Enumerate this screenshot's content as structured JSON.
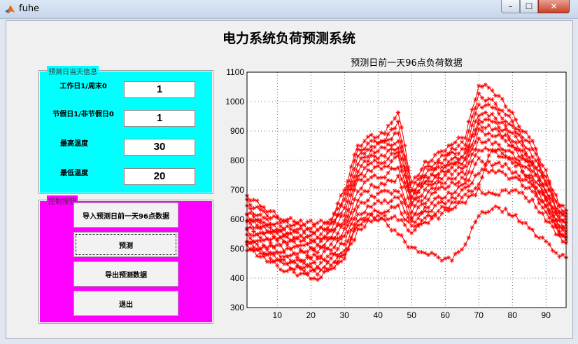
{
  "window": {
    "title": "fuhe",
    "min_label": "–",
    "max_label": "☐",
    "close_label": "✕"
  },
  "main_title": "电力系统负荷预测系统",
  "info_panel": {
    "title": "预测日当天信息",
    "fields": [
      {
        "label": "工作日1/周末0",
        "value": "1"
      },
      {
        "label": "节假日1/非节假日0",
        "value": "1"
      },
      {
        "label": "最高温度",
        "value": "30"
      },
      {
        "label": "最低温度",
        "value": "20"
      }
    ]
  },
  "control_panel": {
    "title": "控制按钮",
    "buttons": [
      {
        "label": "导入预测日前一天96点数据"
      },
      {
        "label": "预测"
      },
      {
        "label": "导出预测数据"
      },
      {
        "label": "退出"
      }
    ]
  },
  "chart_data": {
    "type": "line",
    "title": "预测日前一天96点负荷数据",
    "xlim": [
      1,
      96
    ],
    "ylim": [
      300,
      1100
    ],
    "xticks": [
      10,
      20,
      30,
      40,
      50,
      60,
      70,
      80,
      90
    ],
    "yticks": [
      300,
      400,
      500,
      600,
      700,
      800,
      900,
      1000,
      1100
    ],
    "grid": "dotted",
    "marker": "*",
    "color": "#ff0000",
    "series_count": 14,
    "series": [
      {
        "x": [
          1,
          6,
          12,
          18,
          22,
          26,
          30,
          34,
          38,
          42,
          46,
          50,
          54,
          58,
          62,
          66,
          70,
          74,
          78,
          82,
          86,
          90,
          94,
          96
        ],
        "values": [
          680,
          640,
          600,
          590,
          585,
          600,
          700,
          850,
          880,
          890,
          970,
          720,
          790,
          820,
          860,
          880,
          1060,
          1040,
          990,
          920,
          860,
          760,
          650,
          630
        ]
      },
      {
        "x": [
          1,
          6,
          12,
          18,
          22,
          26,
          30,
          34,
          38,
          42,
          46,
          50,
          54,
          58,
          62,
          66,
          70,
          74,
          78,
          82,
          86,
          90,
          94,
          96
        ],
        "values": [
          660,
          620,
          590,
          575,
          570,
          590,
          680,
          830,
          860,
          870,
          930,
          700,
          770,
          800,
          840,
          860,
          1020,
          1000,
          960,
          900,
          840,
          740,
          640,
          620
        ]
      },
      {
        "x": [
          1,
          6,
          12,
          18,
          22,
          26,
          30,
          34,
          38,
          42,
          46,
          50,
          54,
          58,
          62,
          66,
          70,
          74,
          78,
          82,
          86,
          90,
          94,
          96
        ],
        "values": [
          640,
          600,
          570,
          560,
          560,
          580,
          660,
          810,
          850,
          860,
          900,
          690,
          750,
          790,
          820,
          840,
          990,
          980,
          940,
          880,
          820,
          730,
          630,
          610
        ]
      },
      {
        "x": [
          1,
          6,
          12,
          18,
          22,
          26,
          30,
          34,
          38,
          42,
          46,
          50,
          54,
          58,
          62,
          66,
          70,
          74,
          78,
          82,
          86,
          90,
          94,
          96
        ],
        "values": [
          620,
          590,
          560,
          550,
          545,
          570,
          640,
          790,
          830,
          840,
          870,
          680,
          740,
          770,
          800,
          820,
          960,
          950,
          920,
          860,
          800,
          720,
          620,
          600
        ]
      },
      {
        "x": [
          1,
          6,
          12,
          18,
          22,
          26,
          30,
          34,
          38,
          42,
          46,
          50,
          54,
          58,
          62,
          66,
          70,
          74,
          78,
          82,
          86,
          90,
          94,
          96
        ],
        "values": [
          610,
          580,
          550,
          535,
          530,
          555,
          620,
          770,
          810,
          820,
          850,
          670,
          730,
          760,
          790,
          810,
          940,
          930,
          900,
          840,
          790,
          700,
          610,
          590
        ]
      },
      {
        "x": [
          1,
          6,
          12,
          18,
          22,
          26,
          30,
          34,
          38,
          42,
          46,
          50,
          54,
          58,
          62,
          66,
          70,
          74,
          78,
          82,
          86,
          90,
          94,
          96
        ],
        "values": [
          600,
          570,
          540,
          525,
          520,
          545,
          600,
          750,
          790,
          800,
          830,
          660,
          720,
          750,
          780,
          800,
          920,
          910,
          880,
          830,
          780,
          690,
          600,
          580
        ]
      },
      {
        "x": [
          1,
          6,
          12,
          18,
          22,
          26,
          30,
          34,
          38,
          42,
          46,
          50,
          54,
          58,
          62,
          66,
          70,
          74,
          78,
          82,
          86,
          90,
          94,
          96
        ],
        "values": [
          590,
          560,
          530,
          510,
          505,
          530,
          580,
          730,
          770,
          780,
          810,
          650,
          700,
          740,
          760,
          780,
          900,
          890,
          870,
          820,
          770,
          680,
          590,
          570
        ]
      },
      {
        "x": [
          1,
          6,
          12,
          18,
          22,
          26,
          30,
          34,
          38,
          42,
          46,
          50,
          54,
          58,
          62,
          66,
          70,
          74,
          78,
          82,
          86,
          90,
          94,
          96
        ],
        "values": [
          570,
          545,
          515,
          495,
          490,
          515,
          560,
          700,
          740,
          750,
          780,
          630,
          680,
          720,
          740,
          760,
          870,
          860,
          840,
          800,
          750,
          670,
          580,
          560
        ]
      },
      {
        "x": [
          1,
          6,
          12,
          18,
          22,
          26,
          30,
          34,
          38,
          42,
          46,
          50,
          54,
          58,
          62,
          66,
          70,
          74,
          78,
          82,
          86,
          90,
          94,
          96
        ],
        "values": [
          560,
          530,
          500,
          480,
          475,
          500,
          540,
          670,
          710,
          720,
          740,
          610,
          660,
          700,
          720,
          740,
          840,
          830,
          810,
          780,
          730,
          660,
          570,
          550
        ]
      },
      {
        "x": [
          1,
          6,
          12,
          18,
          22,
          26,
          30,
          34,
          38,
          42,
          46,
          50,
          54,
          58,
          62,
          66,
          70,
          74,
          78,
          82,
          86,
          90,
          94,
          96
        ],
        "values": [
          540,
          515,
          485,
          465,
          460,
          480,
          520,
          640,
          680,
          690,
          700,
          600,
          640,
          670,
          690,
          720,
          800,
          790,
          780,
          750,
          710,
          640,
          560,
          540
        ]
      },
      {
        "x": [
          1,
          6,
          12,
          18,
          22,
          26,
          30,
          34,
          38,
          42,
          46,
          50,
          54,
          58,
          62,
          66,
          70,
          74,
          78,
          82,
          86,
          90,
          94,
          96
        ],
        "values": [
          530,
          500,
          470,
          450,
          445,
          465,
          500,
          610,
          650,
          660,
          670,
          590,
          620,
          650,
          670,
          700,
          760,
          770,
          750,
          730,
          690,
          630,
          550,
          530
        ]
      },
      {
        "x": [
          1,
          6,
          12,
          18,
          22,
          26,
          30,
          34,
          38,
          42,
          46,
          50,
          54,
          58,
          62,
          66,
          70,
          74,
          78,
          82,
          86,
          90,
          94,
          96
        ],
        "values": [
          520,
          490,
          460,
          440,
          430,
          450,
          480,
          580,
          620,
          630,
          640,
          570,
          600,
          630,
          650,
          680,
          720,
          840,
          820,
          780,
          720,
          650,
          560,
          540
        ]
      },
      {
        "x": [
          1,
          6,
          12,
          18,
          22,
          26,
          30,
          34,
          38,
          42,
          46,
          50,
          54,
          58,
          62,
          66,
          70,
          74,
          78,
          82,
          86,
          90,
          94,
          96
        ],
        "values": [
          510,
          480,
          445,
          425,
          420,
          440,
          470,
          560,
          600,
          610,
          600,
          560,
          590,
          610,
          640,
          660,
          700,
          680,
          700,
          690,
          660,
          600,
          540,
          520
        ]
      },
      {
        "x": [
          1,
          6,
          12,
          18,
          22,
          26,
          30,
          34,
          38,
          42,
          46,
          50,
          54,
          58,
          62,
          66,
          70,
          74,
          78,
          82,
          86,
          90,
          94,
          96
        ],
        "values": [
          500,
          470,
          430,
          410,
          400,
          430,
          480,
          590,
          610,
          590,
          550,
          500,
          490,
          470,
          460,
          520,
          610,
          640,
          630,
          600,
          560,
          520,
          480,
          470
        ]
      }
    ]
  }
}
